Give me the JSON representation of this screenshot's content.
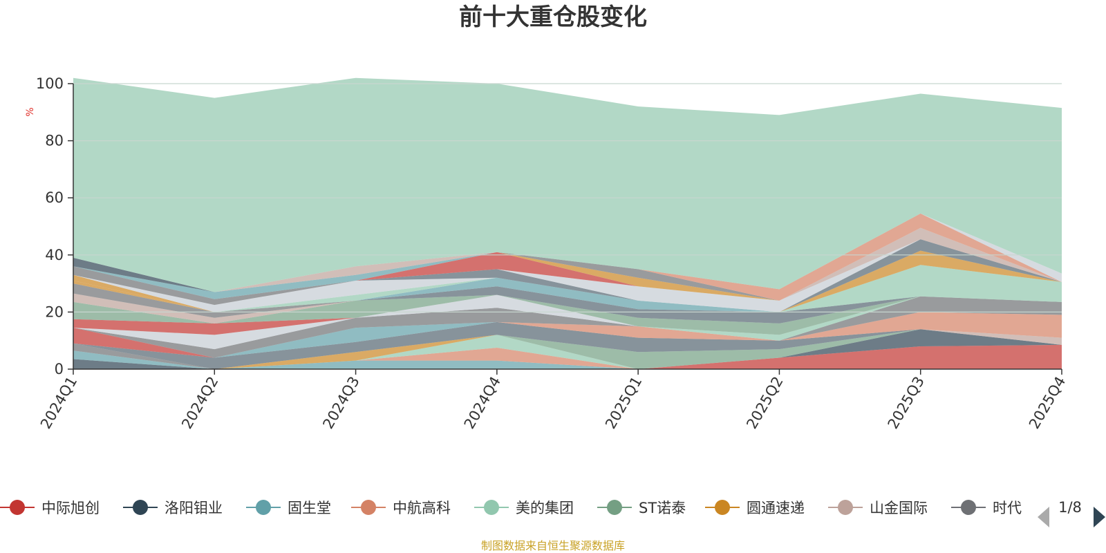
{
  "chart_data": {
    "type": "area",
    "stacked": true,
    "title": "前十大重仓股变化",
    "ylabel": "%",
    "ylim": [
      0,
      100
    ],
    "yticks": [
      0,
      20,
      40,
      60,
      80,
      100
    ],
    "grid": true,
    "categories": [
      "2024Q1",
      "2024Q2",
      "2024Q3",
      "2024Q4",
      "2025Q1",
      "2025Q2",
      "2025Q3",
      "2025Q4"
    ],
    "series": [
      {
        "name": "中际旭创",
        "color": "#c23531",
        "values": [
          0,
          0,
          0,
          0,
          0,
          4,
          8,
          8.5
        ]
      },
      {
        "name": "洛阳钼业",
        "color": "#2f4554",
        "values": [
          3.5,
          0,
          0,
          0,
          0,
          0,
          6,
          0
        ]
      },
      {
        "name": "固生堂",
        "color": "#61a0a8",
        "values": [
          3,
          0,
          3,
          3,
          0,
          0,
          0,
          0
        ]
      },
      {
        "name": "中航高科",
        "color": "#d48265",
        "values": [
          0,
          0,
          0,
          4.5,
          0,
          0,
          0,
          0
        ]
      },
      {
        "name": "美的集团",
        "color": "#91c7ae",
        "values": [
          0,
          0,
          0,
          4.5,
          0,
          0,
          0,
          0
        ]
      },
      {
        "name": "ST诺泰",
        "color": "#749f83",
        "values": [
          0,
          0,
          0,
          0,
          6,
          3,
          0,
          0
        ]
      },
      {
        "name": "圆通速递",
        "color": "#ca8622",
        "values": [
          0,
          0,
          3,
          0,
          0,
          0,
          0,
          0
        ]
      },
      {
        "name": "山金国际",
        "color": "#bda29a",
        "values": [
          0,
          0,
          0,
          0,
          0,
          0,
          0,
          2.5
        ]
      },
      {
        "name": "时代",
        "color": "#6e7074",
        "values": [
          2.5,
          0,
          0,
          0,
          0,
          0,
          0,
          0
        ]
      },
      {
        "name": "",
        "color": "#546570",
        "values": [
          0,
          4,
          3.5,
          4.5,
          5,
          3,
          0,
          0
        ]
      },
      {
        "name": "",
        "color": "#c4ccd3",
        "values": [
          0,
          0,
          0,
          0,
          0,
          0,
          0,
          0
        ]
      },
      {
        "name": "",
        "color": "#61a0a8",
        "values": [
          0,
          0,
          5,
          0,
          0,
          0,
          0,
          0
        ]
      },
      {
        "name": "",
        "color": "#c23531",
        "values": [
          5.5,
          0,
          0,
          0,
          0,
          0,
          0,
          0
        ]
      },
      {
        "name": "",
        "color": "#d48265",
        "values": [
          0,
          0,
          0,
          0,
          4,
          0,
          6,
          8
        ]
      },
      {
        "name": "",
        "color": "#6e7074",
        "values": [
          0,
          3,
          3.5,
          5,
          0,
          0,
          5.5,
          4.5
        ]
      },
      {
        "name": "",
        "color": "#c4ccd3",
        "values": [
          0,
          5,
          0,
          4.5,
          0,
          0,
          0,
          0
        ]
      },
      {
        "name": "",
        "color": "#91c7ae",
        "values": [
          0,
          0,
          0,
          0,
          0,
          2,
          0,
          0
        ]
      },
      {
        "name": "",
        "color": "#c23531",
        "values": [
          3,
          4,
          0,
          0,
          0,
          0,
          0,
          0
        ]
      },
      {
        "name": "",
        "color": "#749f83",
        "values": [
          6,
          0,
          6,
          0,
          3,
          4,
          0,
          0
        ]
      },
      {
        "name": "",
        "color": "#546570",
        "values": [
          0,
          0,
          0,
          3,
          3,
          4,
          0,
          0
        ]
      },
      {
        "name": "",
        "color": "#bda29a",
        "values": [
          3,
          2,
          0,
          0,
          0,
          0,
          0,
          0
        ]
      },
      {
        "name": "",
        "color": "#61a0a8",
        "values": [
          0,
          0,
          0,
          3,
          3,
          0,
          0,
          0
        ]
      },
      {
        "name": "",
        "color": "#6e7074",
        "values": [
          3.5,
          2,
          0,
          0,
          0,
          0,
          0,
          0
        ]
      },
      {
        "name": "",
        "color": "#ca8622",
        "values": [
          1,
          0,
          0,
          0,
          0,
          0,
          0,
          0
        ]
      },
      {
        "name": "",
        "color": "#91c7ae",
        "values": [
          0,
          0,
          2,
          0,
          0,
          0,
          11,
          7
        ]
      },
      {
        "name": "",
        "color": "#ca8622",
        "values": [
          2,
          0,
          0,
          0,
          0,
          0,
          5,
          0
        ]
      },
      {
        "name": "",
        "color": "#c4ccd3",
        "values": [
          0,
          2.5,
          5,
          0,
          0,
          0,
          0,
          0
        ]
      },
      {
        "name": "",
        "color": "#546570",
        "values": [
          0,
          0,
          0,
          3,
          0,
          0,
          4,
          0
        ]
      },
      {
        "name": "",
        "color": "#749f83",
        "values": [
          0,
          0,
          0,
          0,
          0,
          0,
          0,
          0
        ]
      },
      {
        "name": "",
        "color": "#c4ccd3",
        "values": [
          0,
          0,
          0,
          0,
          5,
          4,
          0,
          0
        ]
      },
      {
        "name": "",
        "color": "#6e7074",
        "values": [
          3,
          2,
          0,
          0,
          0,
          0,
          0,
          0
        ]
      },
      {
        "name": "",
        "color": "#c23531",
        "values": [
          0,
          0,
          0,
          6,
          0,
          0,
          0,
          0
        ]
      },
      {
        "name": "",
        "color": "#bda29a",
        "values": [
          0,
          0,
          0,
          0,
          0,
          0,
          4,
          0
        ]
      },
      {
        "name": "",
        "color": "#61a0a8",
        "values": [
          0,
          2.5,
          2,
          0,
          0,
          0,
          0,
          0
        ]
      },
      {
        "name": "",
        "color": "#ca8622",
        "values": [
          0,
          0,
          0,
          0,
          3,
          0,
          0,
          0
        ]
      },
      {
        "name": "",
        "color": "#6e7074",
        "values": [
          0,
          0,
          0,
          0,
          3,
          0,
          0,
          0
        ]
      },
      {
        "name": "",
        "color": "#d48265",
        "values": [
          0,
          0,
          0,
          0,
          0,
          4,
          5,
          0
        ]
      },
      {
        "name": "",
        "color": "#bda29a",
        "values": [
          0,
          0,
          3,
          0,
          0,
          0,
          0,
          0
        ]
      },
      {
        "name": "",
        "color": "#c4ccd3",
        "values": [
          0,
          0,
          0,
          0,
          0,
          0,
          0,
          3
        ]
      },
      {
        "name": "",
        "color": "#2f4554",
        "values": [
          3,
          0,
          0,
          0,
          0,
          0,
          0,
          0
        ]
      },
      {
        "name": "",
        "color": "#91c7ae",
        "values": [
          63,
          68,
          66,
          59,
          57,
          61,
          42,
          58
        ]
      }
    ],
    "legend": {
      "position": "bottom",
      "page": "1/8"
    }
  },
  "footer": {
    "source": "制图数据来自恒生聚源数据库"
  },
  "colors": {
    "axis": "#333333",
    "grid": "#c8d6cf",
    "source": "#c9a227",
    "ylabel": "#e0302a",
    "pager_active": "#2f4554",
    "pager_inactive": "#aaaaaa"
  }
}
